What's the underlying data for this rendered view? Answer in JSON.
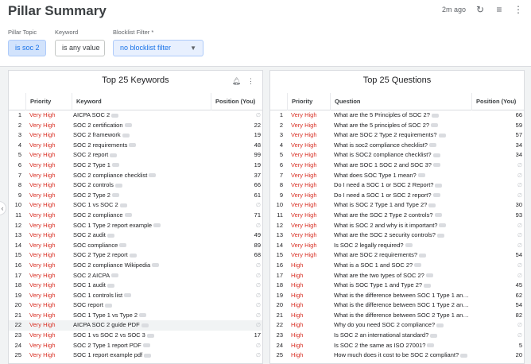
{
  "header": {
    "title": "Pillar Summary",
    "updated": "2m ago",
    "icons": [
      "refresh-icon",
      "filter-icon",
      "more-vert-icon"
    ]
  },
  "filters": {
    "pillar_topic": {
      "label": "Pillar Topic",
      "value": "is soc 2"
    },
    "keyword": {
      "label": "Keyword",
      "value": "is any value"
    },
    "blocklist": {
      "label": "Blocklist Filter *",
      "value": "no blocklist filter"
    }
  },
  "keywords_panel": {
    "title": "Top 25 Keywords",
    "columns": [
      "Priority",
      "Keyword",
      "Position (You)"
    ],
    "rows": [
      {
        "n": "1",
        "priority": "Very High",
        "keyword": "AICPA SOC 2",
        "pos": ""
      },
      {
        "n": "2",
        "priority": "Very High",
        "keyword": "SOC 2 certification",
        "pos": "22"
      },
      {
        "n": "3",
        "priority": "Very High",
        "keyword": "SOC 2 framework",
        "pos": "19"
      },
      {
        "n": "4",
        "priority": "Very High",
        "keyword": "SOC 2 requirements",
        "pos": "48"
      },
      {
        "n": "5",
        "priority": "Very High",
        "keyword": "SOC 2 report",
        "pos": "99"
      },
      {
        "n": "6",
        "priority": "Very High",
        "keyword": "SOC 2 Type 1",
        "pos": "19"
      },
      {
        "n": "7",
        "priority": "Very High",
        "keyword": "SOC 2 compliance checklist",
        "pos": "37"
      },
      {
        "n": "8",
        "priority": "Very High",
        "keyword": "SOC 2 controls",
        "pos": "66"
      },
      {
        "n": "9",
        "priority": "Very High",
        "keyword": "SOC 2 Type 2",
        "pos": "61"
      },
      {
        "n": "10",
        "priority": "Very High",
        "keyword": "SOC 1 vs SOC 2",
        "pos": ""
      },
      {
        "n": "11",
        "priority": "Very High",
        "keyword": "SOC 2 compliance",
        "pos": "71"
      },
      {
        "n": "12",
        "priority": "Very High",
        "keyword": "SOC 1 Type 2 report example",
        "pos": ""
      },
      {
        "n": "13",
        "priority": "Very High",
        "keyword": "SOC 2 audit",
        "pos": "49"
      },
      {
        "n": "14",
        "priority": "Very High",
        "keyword": "SOC compliance",
        "pos": "89"
      },
      {
        "n": "15",
        "priority": "Very High",
        "keyword": "SOC 2 Type 2 report",
        "pos": "68"
      },
      {
        "n": "16",
        "priority": "Very High",
        "keyword": "SOC 2 compliance Wikipedia",
        "pos": ""
      },
      {
        "n": "17",
        "priority": "Very High",
        "keyword": "SOC 2 AICPA",
        "pos": ""
      },
      {
        "n": "18",
        "priority": "Very High",
        "keyword": "SOC 1 audit",
        "pos": ""
      },
      {
        "n": "19",
        "priority": "Very High",
        "keyword": "SOC 1 controls list",
        "pos": ""
      },
      {
        "n": "20",
        "priority": "Very High",
        "keyword": "SOC report",
        "pos": ""
      },
      {
        "n": "21",
        "priority": "Very High",
        "keyword": "SOC 1 Type 1 vs Type 2",
        "pos": ""
      },
      {
        "n": "22",
        "priority": "Very High",
        "keyword": "AICPA SOC 2 guide PDF",
        "pos": ""
      },
      {
        "n": "23",
        "priority": "Very High",
        "keyword": "SOC 1 vs SOC 2 vs SOC 3",
        "pos": "17"
      },
      {
        "n": "24",
        "priority": "Very High",
        "keyword": "SOC 2 Type 1 report PDF",
        "pos": ""
      },
      {
        "n": "25",
        "priority": "Very High",
        "keyword": "SOC 1 report example pdf",
        "pos": ""
      }
    ]
  },
  "questions_panel": {
    "title": "Top 25 Questions",
    "columns": [
      "Priority",
      "Question",
      "Position (You)"
    ],
    "rows": [
      {
        "n": "1",
        "priority": "Very High",
        "question": "What are the 5 Principles of SOC 2?",
        "pos": "66"
      },
      {
        "n": "2",
        "priority": "Very High",
        "question": "What are the 5 principles of SOC 2?",
        "pos": "59"
      },
      {
        "n": "3",
        "priority": "Very High",
        "question": "What are SOC 2 Type 2 requirements?",
        "pos": "57"
      },
      {
        "n": "4",
        "priority": "Very High",
        "question": "What is soc2 compliance checklist?",
        "pos": "34"
      },
      {
        "n": "5",
        "priority": "Very High",
        "question": "What is SOC2 compliance checklist?",
        "pos": "34"
      },
      {
        "n": "6",
        "priority": "Very High",
        "question": "What are SOC 1 SOC 2 and SOC 3?",
        "pos": ""
      },
      {
        "n": "7",
        "priority": "Very High",
        "question": "What does SOC Type 1 mean?",
        "pos": ""
      },
      {
        "n": "8",
        "priority": "Very High",
        "question": "Do I need a SOC 1 or SOC 2 Report?",
        "pos": ""
      },
      {
        "n": "9",
        "priority": "Very High",
        "question": "Do I need a SOC 1 or SOC 2 report?",
        "pos": ""
      },
      {
        "n": "10",
        "priority": "Very High",
        "question": "What is SOC 2 Type 1 and Type 2?",
        "pos": "30"
      },
      {
        "n": "11",
        "priority": "Very High",
        "question": "What are the SOC 2 Type 2 controls?",
        "pos": "93"
      },
      {
        "n": "12",
        "priority": "Very High",
        "question": "What is SOC 2 and why is it important?",
        "pos": ""
      },
      {
        "n": "13",
        "priority": "Very High",
        "question": "What are the SOC 2 security controls?",
        "pos": ""
      },
      {
        "n": "14",
        "priority": "Very High",
        "question": "Is SOC 2 legally required?",
        "pos": ""
      },
      {
        "n": "15",
        "priority": "Very High",
        "question": "What are SOC 2 requirements?",
        "pos": "54"
      },
      {
        "n": "16",
        "priority": "High",
        "question": "What is a SOC 1 and SOC 2?",
        "pos": ""
      },
      {
        "n": "17",
        "priority": "High",
        "question": "What are the two types of SOC 2?",
        "pos": ""
      },
      {
        "n": "18",
        "priority": "High",
        "question": "What is SOC Type 1 and Type 2?",
        "pos": "45"
      },
      {
        "n": "19",
        "priority": "High",
        "question": "What is the difference between SOC 1 Type 1 and ...",
        "pos": "62"
      },
      {
        "n": "20",
        "priority": "High",
        "question": "What is the difference between SOC 1 Type 2 and ...",
        "pos": "54"
      },
      {
        "n": "21",
        "priority": "High",
        "question": "What is the difference between SOC 2 Type 1 and ...",
        "pos": "82"
      },
      {
        "n": "22",
        "priority": "High",
        "question": "Why do you need SOC 2 compliance?",
        "pos": ""
      },
      {
        "n": "23",
        "priority": "High",
        "question": "Is SOC 2 an international standard?",
        "pos": ""
      },
      {
        "n": "24",
        "priority": "High",
        "question": "Is SOC 2 the same as ISO 27001?",
        "pos": "5"
      },
      {
        "n": "25",
        "priority": "High",
        "question": "How much does it cost to be SOC 2 compliant?",
        "pos": "20"
      }
    ]
  },
  "colors": {
    "priority": "#d93025",
    "accent": "#1a73e8"
  }
}
